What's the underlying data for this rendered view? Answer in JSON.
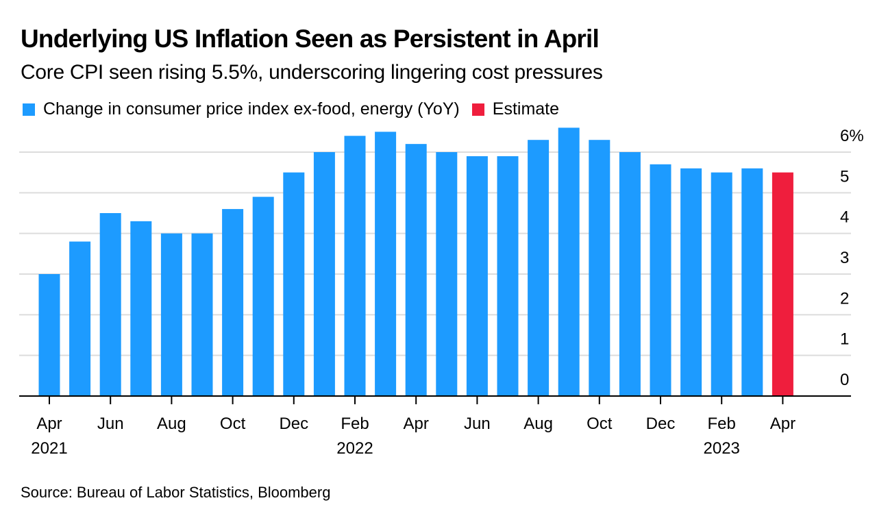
{
  "header": {
    "title": "Underlying US Inflation Seen as Persistent in April",
    "subtitle": "Core CPI seen rising 5.5%, underscoring lingering cost pressures"
  },
  "legend": [
    {
      "label": "Change in consumer price index ex-food, energy (YoY)",
      "color": "#1D9BFF"
    },
    {
      "label": "Estimate",
      "color": "#EF1E3D"
    }
  ],
  "footer": {
    "source": "Source: Bureau of Labor Statistics, Bloomberg"
  },
  "chart_data": {
    "type": "bar",
    "title": "Underlying US Inflation Seen as Persistent in April",
    "subtitle": "Core CPI seen rising 5.5%, underscoring lingering cost pressures",
    "xlabel": "",
    "ylabel": "",
    "ylim": [
      0,
      6
    ],
    "yticks": [
      0,
      1,
      2,
      3,
      4,
      5,
      6
    ],
    "ytick_labels": [
      "0",
      "1",
      "2",
      "3",
      "4",
      "5",
      "6%"
    ],
    "y_axis_side": "right",
    "grid": true,
    "legend_position": "top-left",
    "categories": [
      "Apr 2021",
      "May 2021",
      "Jun 2021",
      "Jul 2021",
      "Aug 2021",
      "Sep 2021",
      "Oct 2021",
      "Nov 2021",
      "Dec 2021",
      "Jan 2022",
      "Feb 2022",
      "Mar 2022",
      "Apr 2022",
      "May 2022",
      "Jun 2022",
      "Jul 2022",
      "Aug 2022",
      "Sep 2022",
      "Oct 2022",
      "Nov 2022",
      "Dec 2022",
      "Jan 2023",
      "Feb 2023",
      "Mar 2023",
      "Apr 2023"
    ],
    "x_tick_labels": [
      {
        "index": 0,
        "month": "Apr",
        "year": "2021"
      },
      {
        "index": 2,
        "month": "Jun",
        "year": ""
      },
      {
        "index": 4,
        "month": "Aug",
        "year": ""
      },
      {
        "index": 6,
        "month": "Oct",
        "year": ""
      },
      {
        "index": 8,
        "month": "Dec",
        "year": ""
      },
      {
        "index": 10,
        "month": "Feb",
        "year": "2022"
      },
      {
        "index": 12,
        "month": "Apr",
        "year": ""
      },
      {
        "index": 14,
        "month": "Jun",
        "year": ""
      },
      {
        "index": 16,
        "month": "Aug",
        "year": ""
      },
      {
        "index": 18,
        "month": "Oct",
        "year": ""
      },
      {
        "index": 20,
        "month": "Dec",
        "year": ""
      },
      {
        "index": 22,
        "month": "Feb",
        "year": "2023"
      },
      {
        "index": 24,
        "month": "Apr",
        "year": ""
      }
    ],
    "series": [
      {
        "name": "Change in consumer price index ex-food, energy (YoY)",
        "color": "#1D9BFF",
        "values": [
          3.0,
          3.8,
          4.5,
          4.3,
          4.0,
          4.0,
          4.6,
          4.9,
          5.5,
          6.0,
          6.4,
          6.5,
          6.2,
          6.0,
          5.9,
          5.9,
          6.3,
          6.6,
          6.3,
          6.0,
          5.7,
          5.6,
          5.5,
          5.6,
          null
        ]
      },
      {
        "name": "Estimate",
        "color": "#EF1E3D",
        "values": [
          null,
          null,
          null,
          null,
          null,
          null,
          null,
          null,
          null,
          null,
          null,
          null,
          null,
          null,
          null,
          null,
          null,
          null,
          null,
          null,
          null,
          null,
          null,
          null,
          5.5
        ]
      }
    ]
  }
}
